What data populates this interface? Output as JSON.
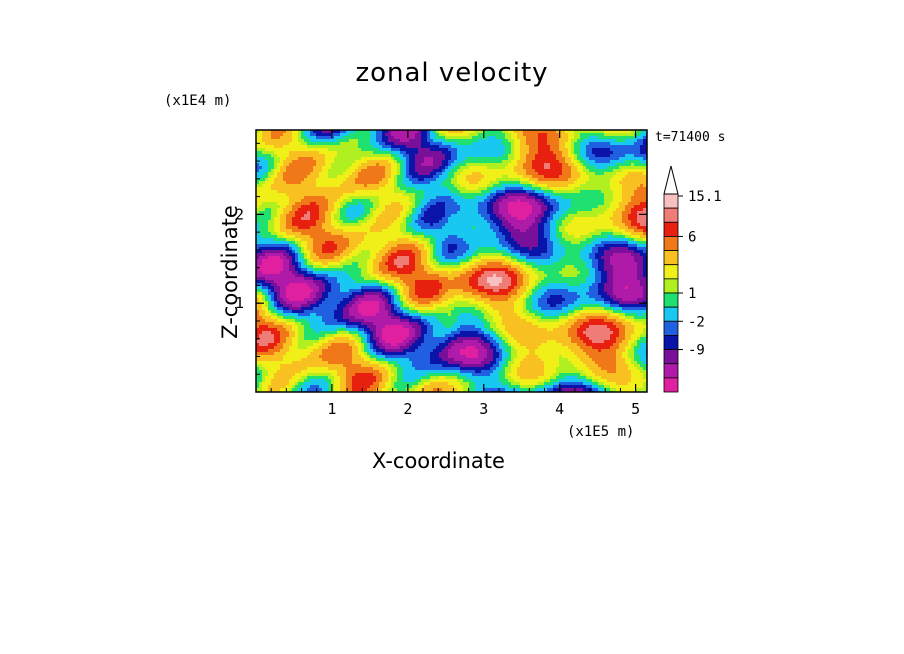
{
  "chart_data": {
    "type": "heatmap",
    "title": "zonal velocity",
    "xlabel": "X-coordinate",
    "ylabel": "Z-coordinate",
    "x_unit": "(x1E5 m)",
    "y_unit": "(x1E4 m)",
    "time_label": "t=71400 s",
    "xlim": [
      0,
      5.15
    ],
    "ylim": [
      0,
      2.95
    ],
    "xticks": [
      1,
      2,
      3,
      4,
      5
    ],
    "yticks": [
      1,
      2
    ],
    "colorbar": {
      "labels": [
        "15.1",
        "6",
        "1",
        "-2",
        "-9"
      ],
      "levels": [
        {
          "color": "#e020a0",
          "range": "< -12"
        },
        {
          "color": "#b01aa8",
          "range": "-12 to -9"
        },
        {
          "color": "#7a109a",
          "range": "-9 to -6"
        },
        {
          "color": "#0a14a8",
          "range": "-6 to -3"
        },
        {
          "color": "#2060e0",
          "range": "-3 to -2"
        },
        {
          "color": "#18c8f0",
          "range": "-2 to -1"
        },
        {
          "color": "#20e070",
          "range": "-1 to 0"
        },
        {
          "color": "#b0f020",
          "range": "0 to 0.5"
        },
        {
          "color": "#f0f018",
          "range": "0.5 to 1"
        },
        {
          "color": "#f8c020",
          "range": "1 to 3"
        },
        {
          "color": "#f07818",
          "range": "3 to 6"
        },
        {
          "color": "#e82010",
          "range": "6 to 9"
        },
        {
          "color": "#f07c78",
          "range": "9 to 12"
        },
        {
          "color": "#f8c0c0",
          "range": "12 to 15.1"
        }
      ]
    }
  }
}
